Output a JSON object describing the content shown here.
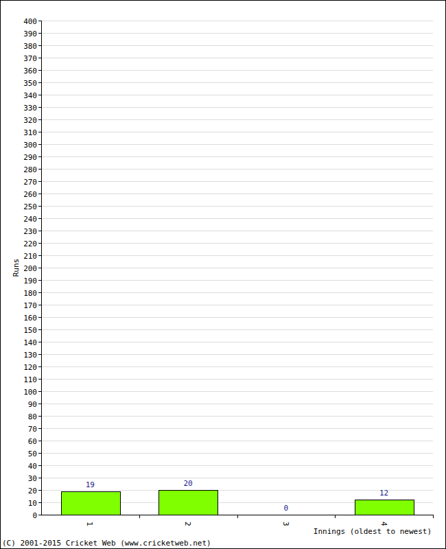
{
  "chart_data": {
    "type": "bar",
    "x_label": "Innings (oldest to newest)",
    "y_label": "Runs",
    "annotations": [
      "(C) 2001-2015 Cricket Web (www.cricketweb.net)"
    ],
    "categories": [
      "1",
      "2",
      "3",
      "4"
    ],
    "values": [
      19,
      20,
      0,
      12
    ],
    "color": "#80ff00",
    "data_labels": true,
    "grid": true,
    "ylim": [
      0,
      400
    ],
    "yticks": [
      0,
      10,
      20,
      30,
      40,
      50,
      60,
      70,
      80,
      90,
      100,
      110,
      120,
      130,
      140,
      150,
      160,
      170,
      180,
      190,
      200,
      210,
      220,
      230,
      240,
      250,
      260,
      270,
      280,
      290,
      300,
      310,
      320,
      330,
      340,
      350,
      360,
      370,
      380,
      390,
      400
    ]
  }
}
